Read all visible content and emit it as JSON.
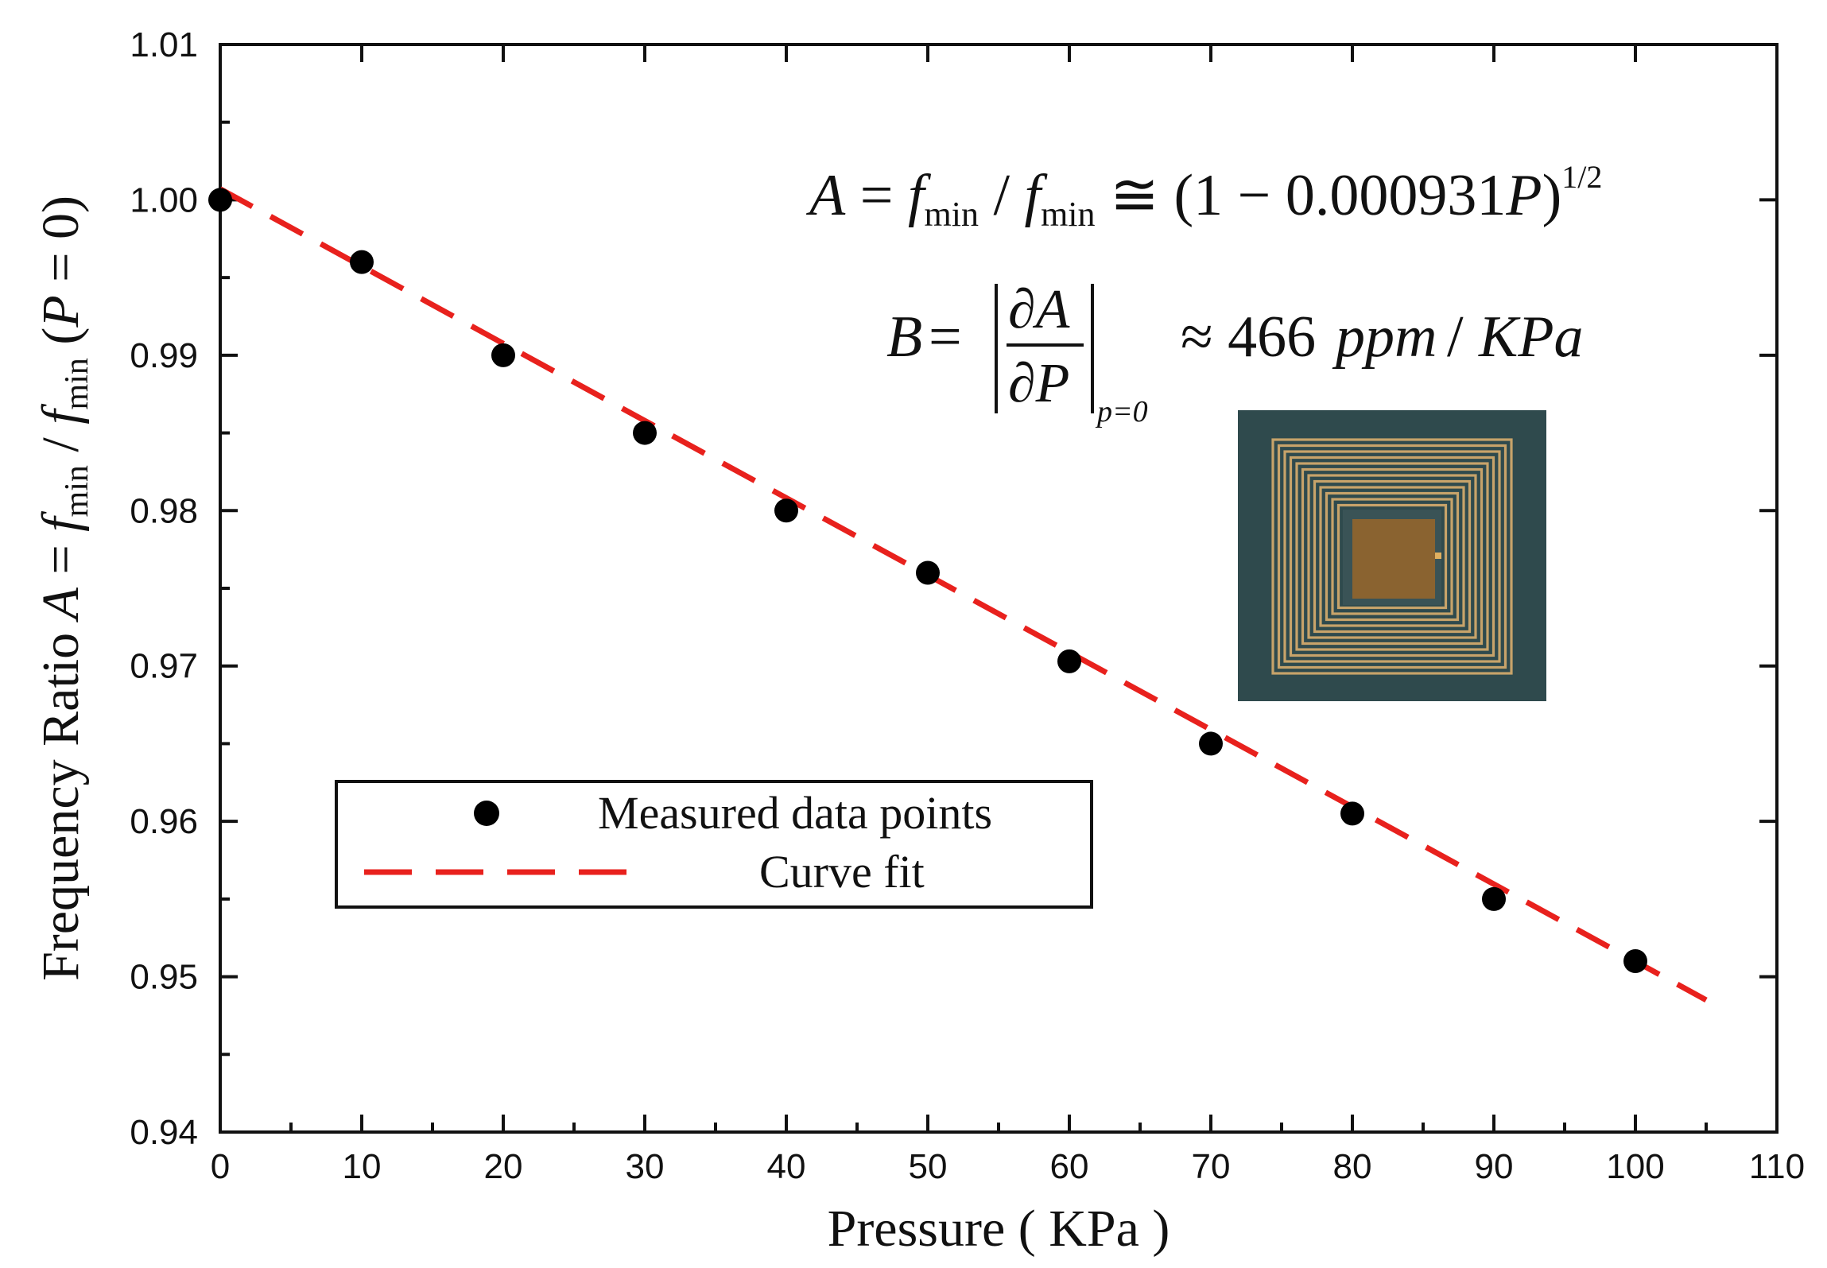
{
  "chart_data": {
    "type": "scatter",
    "xlabel": "Pressure ( KPa )",
    "ylabel_text": "Frequency Ratio",
    "ylabel_formula": "A = f_min / f_min (P = 0)",
    "xlim": [
      0,
      110
    ],
    "ylim": [
      0.94,
      1.01
    ],
    "x_ticks": [
      "0",
      "10",
      "20",
      "30",
      "40",
      "50",
      "60",
      "70",
      "80",
      "90",
      "100",
      "110"
    ],
    "y_ticks": [
      "0.94",
      "0.95",
      "0.96",
      "0.97",
      "0.98",
      "0.99",
      "1.00",
      "1.01"
    ],
    "series": [
      {
        "name": "Measured data points",
        "kind": "scatter",
        "color": "#000000",
        "x": [
          0,
          10,
          20,
          30,
          40,
          50,
          60,
          70,
          80,
          90,
          100
        ],
        "y": [
          1.0,
          0.996,
          0.99,
          0.985,
          0.98,
          0.976,
          0.9703,
          0.965,
          0.9605,
          0.955,
          0.951
        ]
      },
      {
        "name": "Curve fit",
        "kind": "line",
        "style": "dashed",
        "color": "#e8211d",
        "x": [
          0,
          105
        ],
        "y": [
          1.0007,
          0.9485
        ]
      }
    ],
    "legend": {
      "position": "lower-left",
      "entries": [
        "Measured data points",
        "Curve fit"
      ]
    },
    "annotations": {
      "equation_1": "A = f_min / f_min ≅ (1 − 0.000931P)^1/2",
      "equation_2": "B = |∂A/∂P|_p=0 ≈ 466 ppm / KPa"
    },
    "inset": "photo of square spiral coil sensor",
    "grid": false
  }
}
